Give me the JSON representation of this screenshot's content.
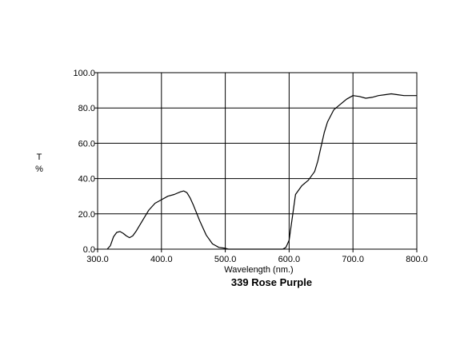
{
  "chart_data": {
    "type": "line",
    "title": "339 Rose Purple",
    "xlabel": "Wavelength (nm.)",
    "ylabel": "T\n%",
    "xlim": [
      300,
      800
    ],
    "ylim": [
      0,
      100
    ],
    "grid": true,
    "x_ticks": [
      "300.0",
      "400.0",
      "500.0",
      "600.0",
      "700.0",
      "800.0"
    ],
    "y_ticks": [
      "0.0",
      "20.0",
      "40.0",
      "60.0",
      "80.0",
      "100.0"
    ],
    "series": [
      {
        "name": "",
        "x": [
          315,
          320,
          325,
          330,
          335,
          340,
          345,
          350,
          355,
          360,
          370,
          380,
          390,
          400,
          410,
          420,
          430,
          435,
          440,
          445,
          450,
          460,
          470,
          480,
          490,
          500,
          505,
          510,
          520,
          540,
          560,
          580,
          590,
          595,
          600,
          605,
          610,
          620,
          630,
          640,
          645,
          650,
          655,
          660,
          670,
          680,
          690,
          700,
          710,
          720,
          730,
          740,
          750,
          760,
          770,
          780,
          790,
          800
        ],
        "y": [
          0,
          2,
          7,
          9.5,
          10,
          9,
          7.5,
          6.5,
          7.5,
          10,
          16,
          22,
          26,
          28,
          30,
          31,
          32.5,
          33,
          32,
          29,
          25,
          16,
          8,
          3,
          1,
          0.5,
          0,
          0,
          0,
          0,
          0,
          0,
          0,
          1,
          5,
          18,
          31,
          36,
          39,
          44,
          50,
          58,
          66,
          72,
          79,
          82,
          85,
          87,
          86.5,
          85.5,
          86,
          87,
          87.5,
          88,
          87.5,
          87,
          87,
          87
        ]
      }
    ]
  }
}
